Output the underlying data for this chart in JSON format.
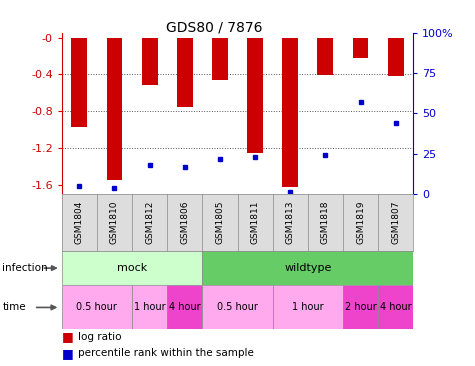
{
  "title": "GDS80 / 7876",
  "samples": [
    "GSM1804",
    "GSM1810",
    "GSM1812",
    "GSM1806",
    "GSM1805",
    "GSM1811",
    "GSM1813",
    "GSM1818",
    "GSM1819",
    "GSM1807"
  ],
  "log_ratios": [
    -0.97,
    -1.55,
    -0.52,
    -0.76,
    -0.46,
    -1.25,
    -1.62,
    -0.41,
    -0.22,
    -0.42
  ],
  "percentile_ranks": [
    5,
    4,
    18,
    17,
    22,
    23,
    1,
    24,
    57,
    44
  ],
  "ylim_left": [
    -1.7,
    0.05
  ],
  "ylim_right": [
    0,
    100
  ],
  "bar_color": "#cc0000",
  "percentile_color": "#0000cc",
  "infection_groups": [
    {
      "label": "mock",
      "start": 0,
      "end": 3,
      "color": "#ccffcc"
    },
    {
      "label": "wildtype",
      "start": 4,
      "end": 9,
      "color": "#66cc66"
    }
  ],
  "time_groups": [
    {
      "label": "0.5 hour",
      "start": 0,
      "end": 1,
      "color": "#ffaaee"
    },
    {
      "label": "1 hour",
      "start": 2,
      "end": 2,
      "color": "#ffaaee"
    },
    {
      "label": "4 hour",
      "start": 3,
      "end": 3,
      "color": "#ee44cc"
    },
    {
      "label": "0.5 hour",
      "start": 4,
      "end": 5,
      "color": "#ffaaee"
    },
    {
      "label": "1 hour",
      "start": 6,
      "end": 7,
      "color": "#ffaaee"
    },
    {
      "label": "2 hour",
      "start": 8,
      "end": 8,
      "color": "#ee44cc"
    },
    {
      "label": "4 hour",
      "start": 9,
      "end": 9,
      "color": "#ee44cc"
    }
  ],
  "ylabel_left_color": "#cc0000",
  "ylabel_right_color": "#0000cc",
  "grid_color": "#555555",
  "legend_items": [
    {
      "label": "log ratio",
      "color": "#cc0000"
    },
    {
      "label": "percentile rank within the sample",
      "color": "#0000cc"
    }
  ],
  "yticks_left": [
    0,
    -0.4,
    -0.8,
    -1.2,
    -1.6
  ],
  "yticks_left_labels": [
    "-0",
    "-0.4",
    "-0.8",
    "-1.2",
    "-1.6"
  ],
  "yticks_right": [
    0,
    25,
    50,
    75,
    100
  ],
  "yticks_right_labels": [
    "0",
    "25",
    "50",
    "75",
    "100%"
  ]
}
